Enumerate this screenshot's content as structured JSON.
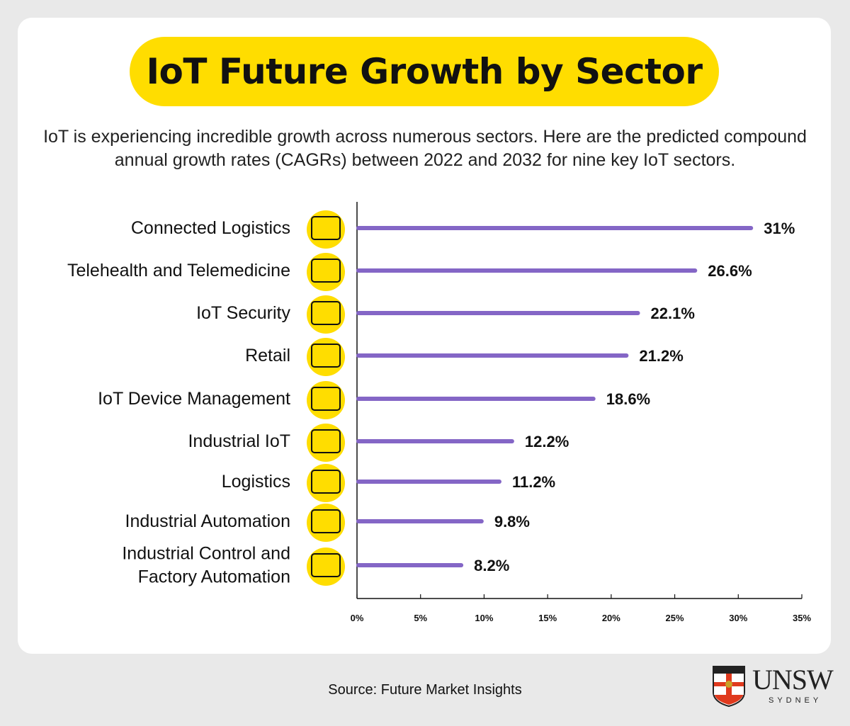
{
  "title": "IoT Future Growth by Sector",
  "subtitle": "IoT is experiencing incredible growth across numerous sectors. Here are the predicted compound annual growth rates (CAGRs) between 2022 and 2032 for nine key IoT sectors.",
  "source": "Source: Future Market Insights",
  "logo": {
    "name": "UNSW",
    "sub": "SYDNEY"
  },
  "colors": {
    "bar": "#8466c6",
    "accent": "#ffdd00"
  },
  "chart_data": {
    "type": "bar",
    "orientation": "horizontal",
    "categories": [
      "Connected Logistics",
      "Telehealth and Telemedicine",
      "IoT Security",
      "Retail",
      "IoT Device Management",
      "Industrial IoT",
      "Logistics",
      "Industrial Automation",
      "Industrial Control and Factory Automation"
    ],
    "icons": [
      "logistics-icon",
      "telehealth-icon",
      "shield-lock-icon",
      "shopping-cart-icon",
      "analytics-icon",
      "gear-icon",
      "truck-icon",
      "automation-gear-icon",
      "gears-icon"
    ],
    "values": [
      31,
      26.6,
      22.1,
      21.2,
      18.6,
      12.2,
      11.2,
      9.8,
      8.2
    ],
    "labels": [
      "31%",
      "26.6%",
      "22.1%",
      "21.2%",
      "18.6%",
      "12.2%",
      "11.2%",
      "9.8%",
      "8.2%"
    ],
    "xlim": [
      0,
      35
    ],
    "xticks": [
      "0%",
      "5%",
      "10%",
      "15%",
      "20%",
      "25%",
      "30%",
      "35%"
    ],
    "grid": false
  }
}
